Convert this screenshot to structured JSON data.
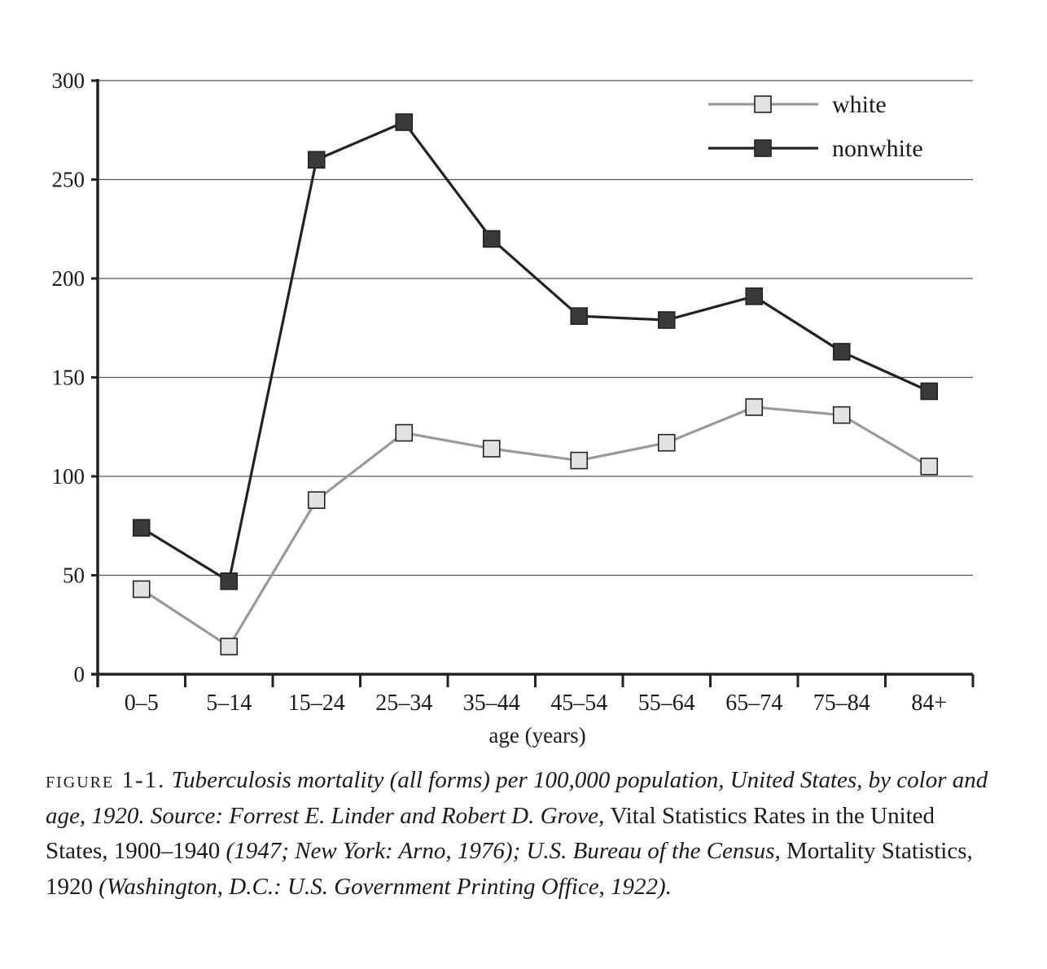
{
  "chart_data": {
    "type": "line",
    "categories": [
      "0–5",
      "5–14",
      "15–24",
      "25–34",
      "35–44",
      "45–54",
      "55–64",
      "65–74",
      "75–84",
      "84+"
    ],
    "series": [
      {
        "name": "white",
        "values": [
          43,
          14,
          88,
          122,
          114,
          108,
          117,
          135,
          131,
          105
        ],
        "color": "#999999",
        "marker_fill": "#e2e2e2"
      },
      {
        "name": "nonwhite",
        "values": [
          74,
          47,
          260,
          279,
          220,
          181,
          179,
          191,
          163,
          143
        ],
        "color": "#222222",
        "marker_fill": "#3a3a3a"
      }
    ],
    "yticks": [
      "0",
      "50",
      "100",
      "150",
      "200",
      "250",
      "300"
    ],
    "ylim": [
      0,
      300
    ],
    "xlabel": "age (years)",
    "ylabel": "",
    "grid": true,
    "legend_position": "top-right"
  },
  "caption": {
    "label": "figure 1-1.",
    "parts": [
      {
        "text": "Tuberculosis mortality (all forms) per 100,000 population, United States, by color and age, 1920. Source: Forrest E. Linder and Robert D. Grove, ",
        "italic": true
      },
      {
        "text": "Vital Statistics Rates in the United States, 1900–1940",
        "italic": false
      },
      {
        "text": " (1947; New York: Arno, 1976); U.S. Bureau of the Census, ",
        "italic": true
      },
      {
        "text": "Mortality Statistics, 1920",
        "italic": false
      },
      {
        "text": " (Washington, D.C.: U.S. Government Printing Office, 1922).",
        "italic": true
      }
    ]
  }
}
